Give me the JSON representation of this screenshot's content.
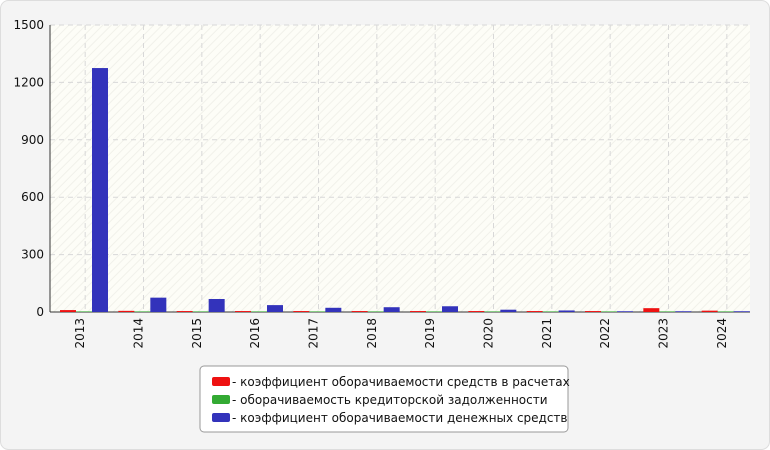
{
  "chart_data": {
    "type": "bar",
    "categories": [
      "2013",
      "2014",
      "2015",
      "2016",
      "2017",
      "2018",
      "2019",
      "2020",
      "2021",
      "2022",
      "2023",
      "2024"
    ],
    "series": [
      {
        "name": "- коэффициент оборачиваемости средств в расчетах",
        "color": "#ee1111",
        "values": [
          10,
          6,
          5,
          5,
          5,
          5,
          5,
          5,
          5,
          5,
          20,
          7
        ]
      },
      {
        "name": "- оборачиваемость кредиторской задолженности",
        "color": "#33aa33",
        "values": [
          3,
          3,
          3,
          3,
          3,
          3,
          3,
          3,
          3,
          3,
          3,
          3
        ]
      },
      {
        "name": "- коэффициент оборачиваемости денежных средств",
        "color": "#3333bb",
        "values": [
          1275,
          75,
          68,
          36,
          22,
          25,
          30,
          12,
          8,
          4,
          4,
          4
        ]
      }
    ],
    "ylim": [
      0,
      1500
    ],
    "yticks": [
      0,
      300,
      600,
      900,
      1200,
      1500
    ],
    "grid": true,
    "legend": "bottom"
  }
}
